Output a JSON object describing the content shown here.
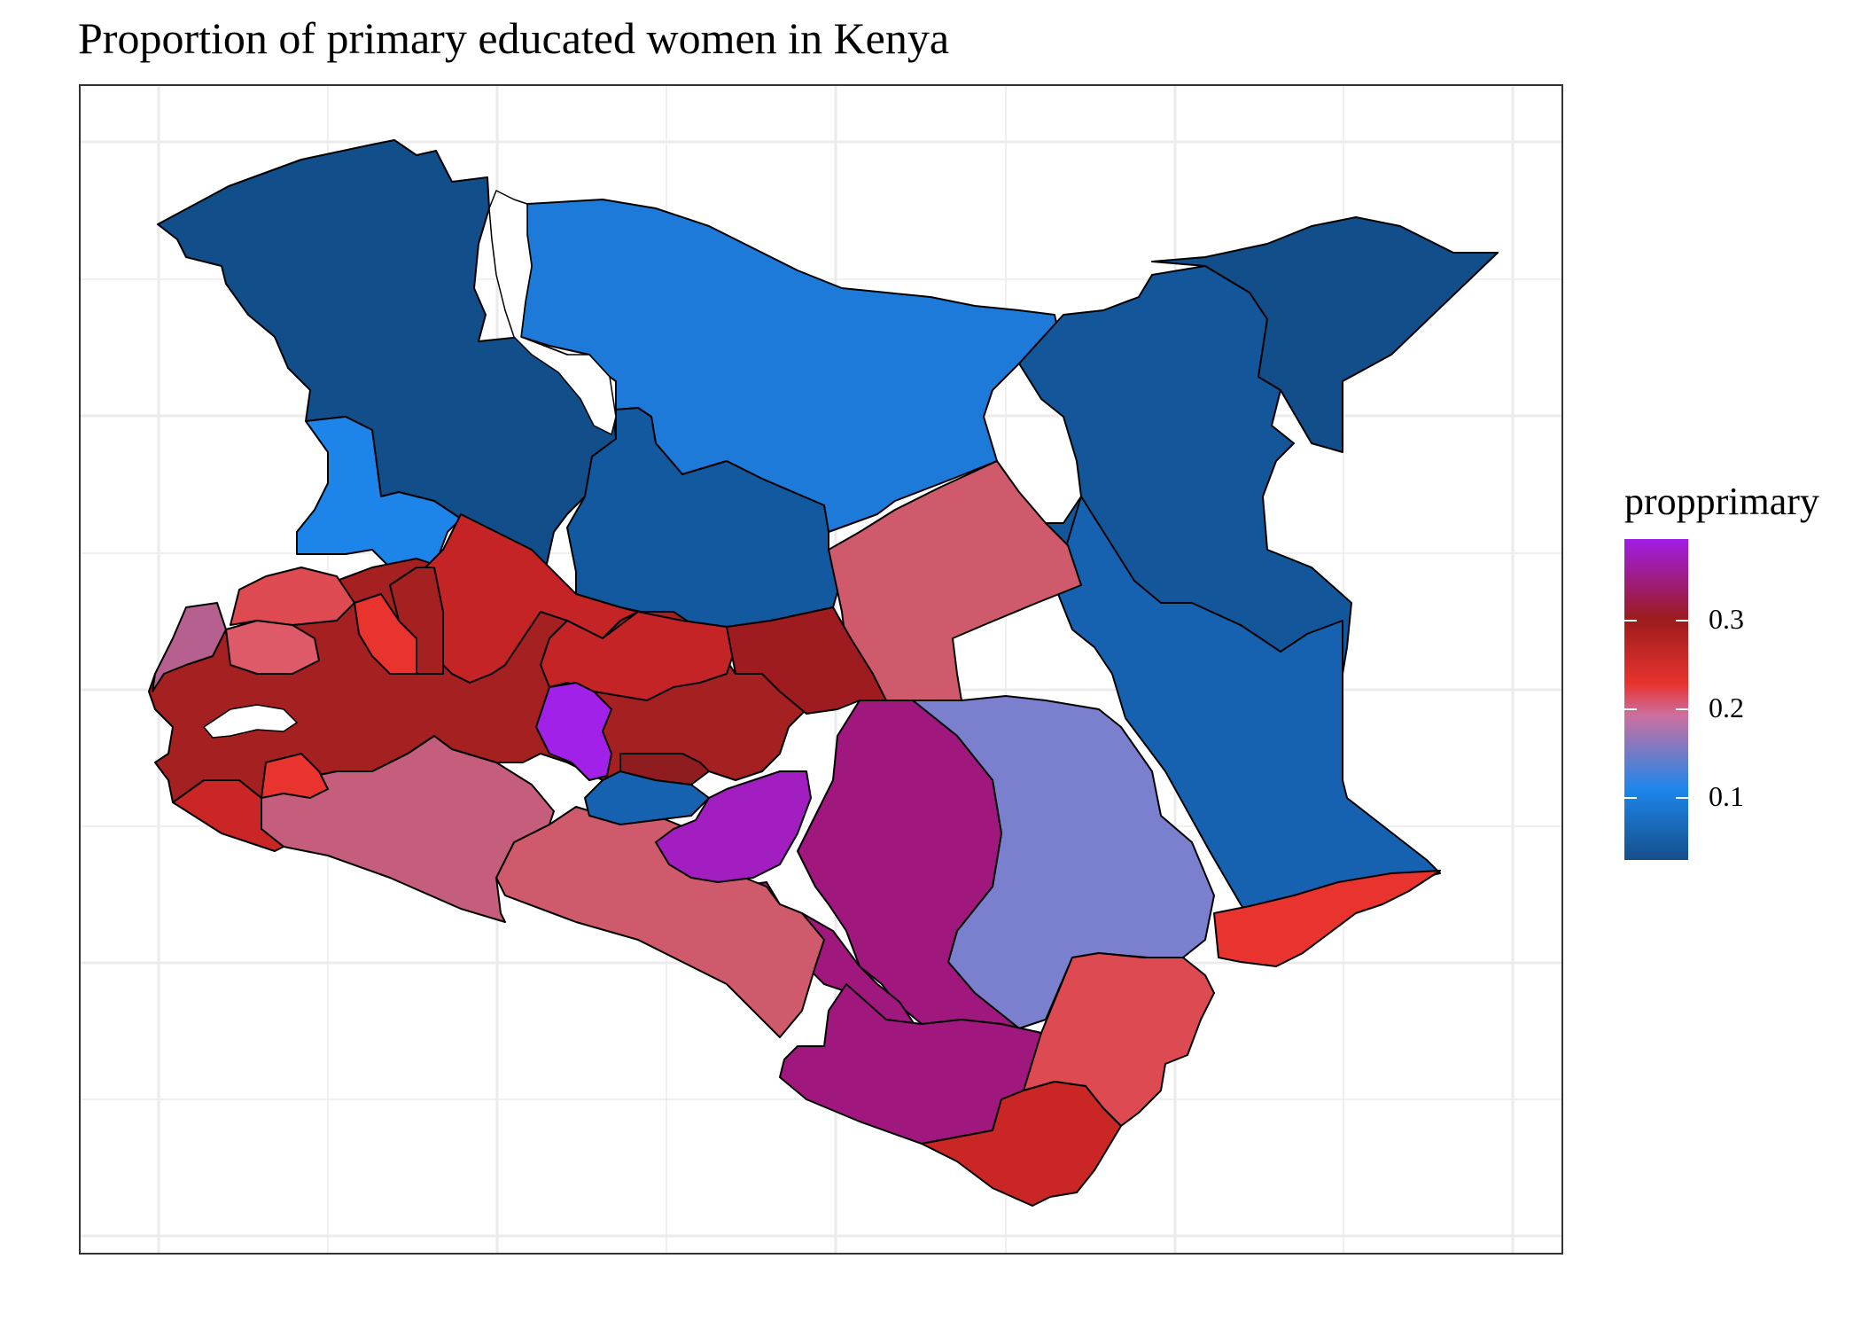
{
  "title": "Proportion of primary educated women in Kenya",
  "legend": {
    "title": "propprimary",
    "ticks": [
      {
        "label": "0.3",
        "value": 0.3
      },
      {
        "label": "0.2",
        "value": 0.2
      },
      {
        "label": "0.1",
        "value": 0.1
      }
    ],
    "range": [
      0.03,
      0.39
    ],
    "colors": {
      "low": "#154f8a",
      "mid_low": "#1d86eb",
      "mid": "#e8332f",
      "mid_high": "#9c1c1c",
      "high": "#a11de6"
    }
  },
  "map": {
    "country": "Kenya",
    "colors": {
      "panel_border": "#333333",
      "grid": "#ebebeb",
      "region_border": "#000000"
    }
  }
}
